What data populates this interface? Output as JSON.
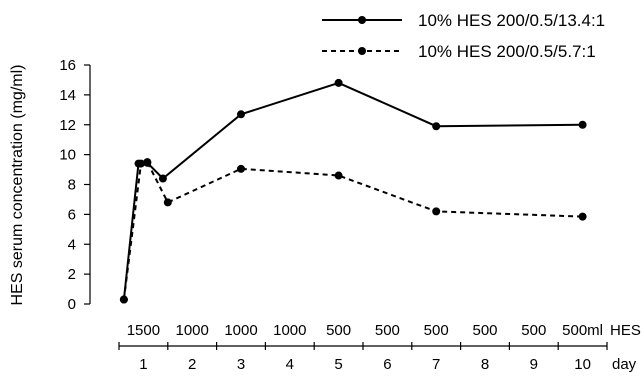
{
  "chart_data": {
    "type": "line",
    "ylabel": "HES serum concentration (mg/ml)",
    "ylim": [
      0,
      16
    ],
    "yticks": [
      0,
      2,
      4,
      6,
      8,
      10,
      12,
      14,
      16
    ],
    "xlim": [
      0.5,
      10.5
    ],
    "grid": false,
    "legend_position": "top-right",
    "axis_name": "day",
    "days": [
      1,
      2,
      3,
      4,
      5,
      6,
      7,
      8,
      9,
      10
    ],
    "day_labels": [
      "1",
      "2",
      "3",
      "4",
      "5",
      "6",
      "7",
      "8",
      "9",
      "10"
    ],
    "hes_title": "HES",
    "hes_doses": [
      "1500",
      "1000",
      "1000",
      "1000",
      "500",
      "500",
      "500",
      "500",
      "500",
      "500ml"
    ],
    "series": [
      {
        "name": "10% HES 200/0.5/13.4:1",
        "line_style": "solid",
        "color": "#000000",
        "x": [
          0.6,
          0.9,
          1.08,
          1.4,
          3,
          5,
          7,
          10
        ],
        "y": [
          0.3,
          9.4,
          9.45,
          8.4,
          12.7,
          14.8,
          11.9,
          12.0
        ]
      },
      {
        "name": "10% HES 200/0.5/5.7:1",
        "line_style": "dashed",
        "color": "#000000",
        "x": [
          0.6,
          0.95,
          1.08,
          1.5,
          3,
          5,
          7,
          10
        ],
        "y": [
          0.3,
          9.4,
          9.5,
          6.8,
          9.05,
          8.6,
          6.2,
          5.85
        ]
      }
    ]
  }
}
